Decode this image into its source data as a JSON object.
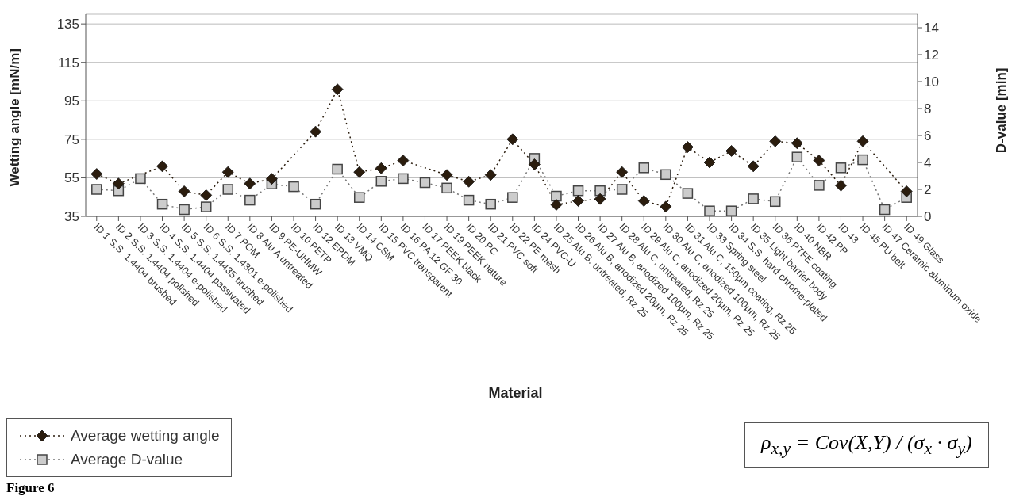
{
  "chart_data": {
    "type": "line",
    "categories": [
      "ID 1 S.S. 1.4404 brushed",
      "ID 2 S.S. 1.4404 polished",
      "ID 3 S.S. 1.4404 e-polished",
      "ID 4 S.S. 1.4404 passivated",
      "ID 5 S.S. 1.4435 brushed",
      "ID 6 S.S. 1.4301 e-polished",
      "ID 7 POM",
      "ID 8 Alu A untreated",
      "ID 9 PE-UHMW",
      "ID 10 PETP",
      "ID 12 EPDM",
      "ID 13 VMQ",
      "ID 14 CSM",
      "ID 15 PVC transparent",
      "ID 16 PA 12 GF 30",
      "ID 17 PEEK black",
      "ID 19 PEEK nature",
      "ID 20 PC",
      "ID 21 PVC soft",
      "ID 22 PE mesh",
      "ID 24 PVC-U",
      "ID 25 Alu B. untreated, Rz 25",
      "ID 26 Alu B, anodized 20µm, Rz 25",
      "ID 27 Alu B, anodized 100µm, Rz 25",
      "ID 28 Alu C, untreated, Rz 25",
      "ID 29 Alu C, anodized 20µm, Rz 25",
      "ID 30 Alu C, anodized 100µm, Rz 25",
      "ID 31 Alu C, 150µm coating, Rz 25",
      "ID 33 Spring steel",
      "ID 34 S.S. hard chrome-plated",
      "ID 35 Light barrier body",
      "ID 36 PTFE coating",
      "ID 40 NBR",
      "ID 42 PP",
      "ID 43",
      "ID 45 PU belt",
      "ID 47 Ceramic aluminum oxide",
      "ID 49 Glass"
    ],
    "series": [
      {
        "name": "Average wetting angle",
        "color": "#2b1d0e",
        "marker": "diamond",
        "values": [
          57,
          52,
          null,
          61,
          48,
          46,
          58,
          52,
          54.5,
          null,
          79,
          101,
          58,
          60,
          64,
          null,
          56.5,
          53,
          56.5,
          75,
          62,
          41,
          43,
          44,
          58,
          43,
          40,
          71,
          63,
          69,
          61,
          74,
          73,
          64,
          51,
          74,
          null,
          48
        ]
      },
      {
        "name": "Average D-value",
        "color": "#cccccc",
        "marker": "square",
        "axis": "y2",
        "values": [
          2.0,
          1.9,
          2.8,
          0.9,
          0.5,
          0.7,
          2.0,
          1.2,
          2.4,
          2.2,
          0.9,
          3.5,
          1.4,
          2.6,
          2.8,
          2.5,
          2.1,
          1.2,
          0.9,
          1.4,
          4.3,
          1.5,
          1.9,
          1.9,
          2.0,
          3.6,
          3.1,
          1.7,
          0.4,
          0.4,
          1.3,
          1.1,
          4.4,
          2.3,
          3.6,
          4.2,
          0.5,
          1.4
        ]
      }
    ],
    "xlabel": "Material",
    "ylabel": "Wetting angle [mN/m]",
    "y2label": "D-value [min]",
    "ylim": [
      35,
      140
    ],
    "yticks": [
      35,
      55,
      75,
      95,
      115,
      135
    ],
    "y2lim": [
      0,
      15
    ],
    "y2ticks": [
      0,
      2,
      4,
      6,
      8,
      10,
      12,
      14
    ],
    "grid": "y",
    "legend": "bottom left",
    "line_style": "dotted",
    "annotations": [
      "ρ$_{x,y}$ = Cov(X,Y) / (σ$_{x}$ · σ$_{y}$)",
      "Figure 6"
    ]
  }
}
